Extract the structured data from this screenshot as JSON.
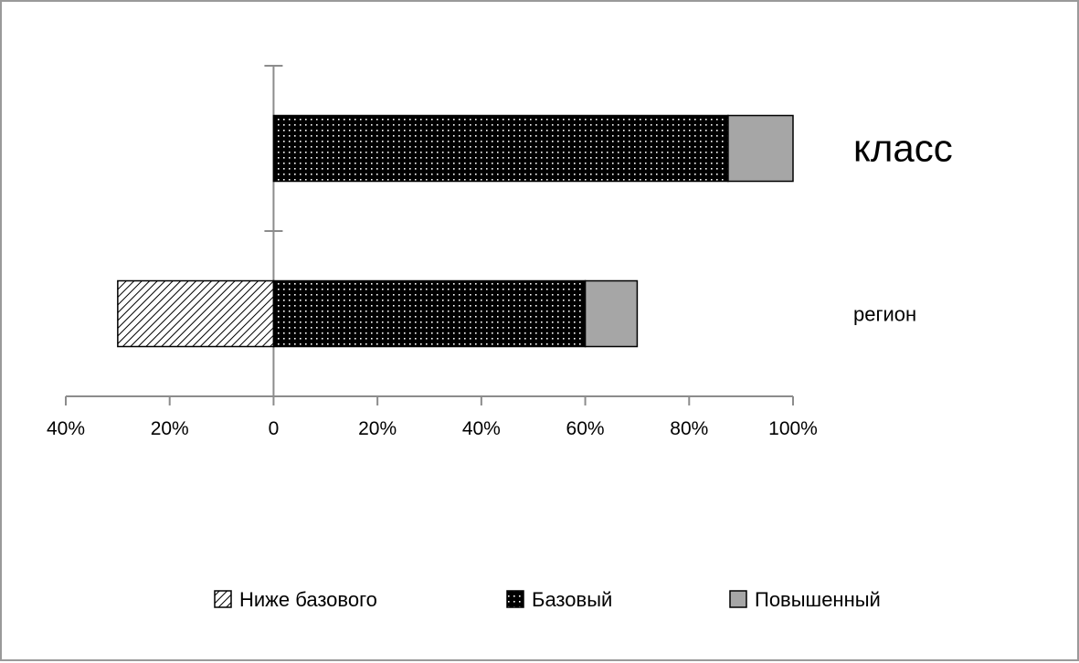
{
  "chart_data": {
    "type": "bar",
    "orientation": "horizontal",
    "stacked": true,
    "categories": [
      "класс",
      "регион"
    ],
    "series": [
      {
        "name": "Ниже базового",
        "values": [
          0,
          -30
        ],
        "color": "#ffffff",
        "pattern": "diagonal-hatch"
      },
      {
        "name": "Базовый",
        "values": [
          87.5,
          60
        ],
        "color": "#000000",
        "pattern": "white-dots"
      },
      {
        "name": "Повышенный",
        "values": [
          12.5,
          10
        ],
        "color": "#a6a6a6",
        "pattern": "solid"
      }
    ],
    "xlim": [
      -40,
      100
    ],
    "xticks": [
      -40,
      -20,
      0,
      20,
      40,
      60,
      80,
      100
    ],
    "xtick_labels": [
      "40%",
      "20%",
      "0",
      "20%",
      "40%",
      "60%",
      "80%",
      "100%"
    ],
    "legend_position": "bottom",
    "grid": false,
    "title": "",
    "xlabel": "",
    "ylabel": ""
  }
}
